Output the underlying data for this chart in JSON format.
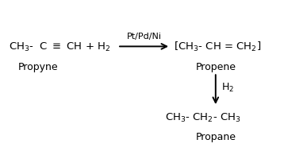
{
  "background_color": "#ffffff",
  "figsize": [
    3.58,
    2.01
  ],
  "dpi": 100,
  "catalyst": "Pt/Pd/Ni",
  "intermediate_label": "Propene",
  "h2_label": "H$_2$",
  "product_label": "Propane",
  "reactant_label": "Propyne",
  "font_size_formula": 9.5,
  "font_size_label": 9,
  "font_size_catalyst": 8,
  "arrow_color": "#000000",
  "text_color": "#000000",
  "xlim": [
    0,
    10
  ],
  "ylim": [
    0,
    5.5
  ]
}
